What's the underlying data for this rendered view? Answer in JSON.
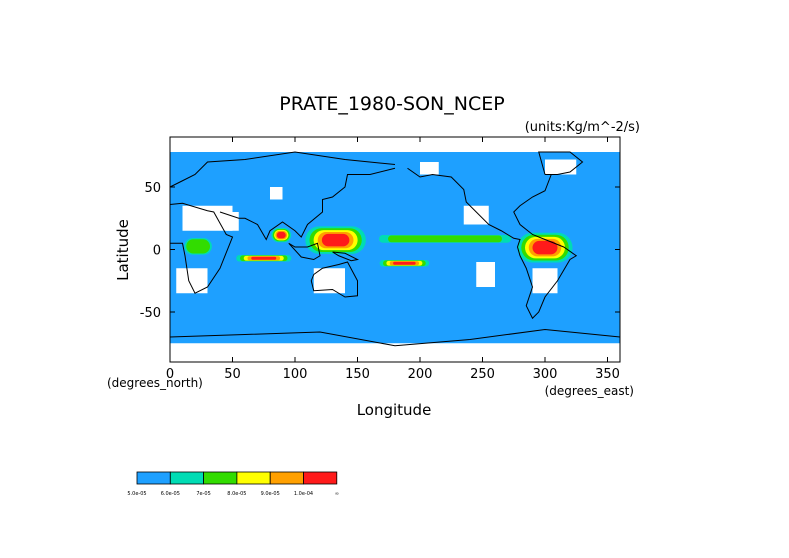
{
  "chart_data": {
    "type": "heatmap",
    "title": "PRATE_1980-SON_NCEP",
    "units": "(units:Kg/m^-2/s)",
    "xlabel": "Longitude",
    "ylabel": "Latitude",
    "x_unit_label": "(degrees_east)",
    "y_unit_label": "(degrees_north)",
    "xlim": [
      0,
      360
    ],
    "ylim": [
      -90,
      90
    ],
    "x_ticks": [
      0,
      50,
      100,
      150,
      200,
      250,
      300,
      350
    ],
    "y_ticks": [
      50,
      0,
      -50
    ],
    "grid": false,
    "legend": {
      "position": "bottom-left",
      "colors": [
        "#1ea0ff",
        "#00dcb4",
        "#32dc00",
        "#ffff00",
        "#ffa000",
        "#ff1a1a"
      ],
      "labels": [
        "5.0e-05",
        "6.0e-05",
        "7e-05",
        "8.0e-05",
        "9.0e-05",
        "1.0e-04",
        "∞"
      ]
    },
    "fill_colors": {
      "background": "#1ea0ff",
      "missing": "#ffffff",
      "coast": "#000000"
    },
    "precip_regions": [
      {
        "name": "western-pacific-warm-pool",
        "lon": [
          105,
          160
        ],
        "lat": [
          -5,
          20
        ],
        "level": 6
      },
      {
        "name": "indian-ocean-band",
        "lon": [
          50,
          100
        ],
        "lat": [
          -10,
          -4
        ],
        "level": 6
      },
      {
        "name": "bay-of-bengal",
        "lon": [
          80,
          98
        ],
        "lat": [
          5,
          18
        ],
        "level": 6
      },
      {
        "name": "south-pacific-convergence",
        "lon": [
          165,
          210
        ],
        "lat": [
          -14,
          -8
        ],
        "level": 6
      },
      {
        "name": "itcz-central-pacific",
        "lon": [
          160,
          280
        ],
        "lat": [
          5,
          12
        ],
        "level": 3
      },
      {
        "name": "amazon-basin",
        "lon": [
          275,
          325
        ],
        "lat": [
          -12,
          15
        ],
        "level": 6
      },
      {
        "name": "central-africa",
        "lon": [
          10,
          35
        ],
        "lat": [
          -5,
          10
        ],
        "level": 3
      }
    ]
  }
}
